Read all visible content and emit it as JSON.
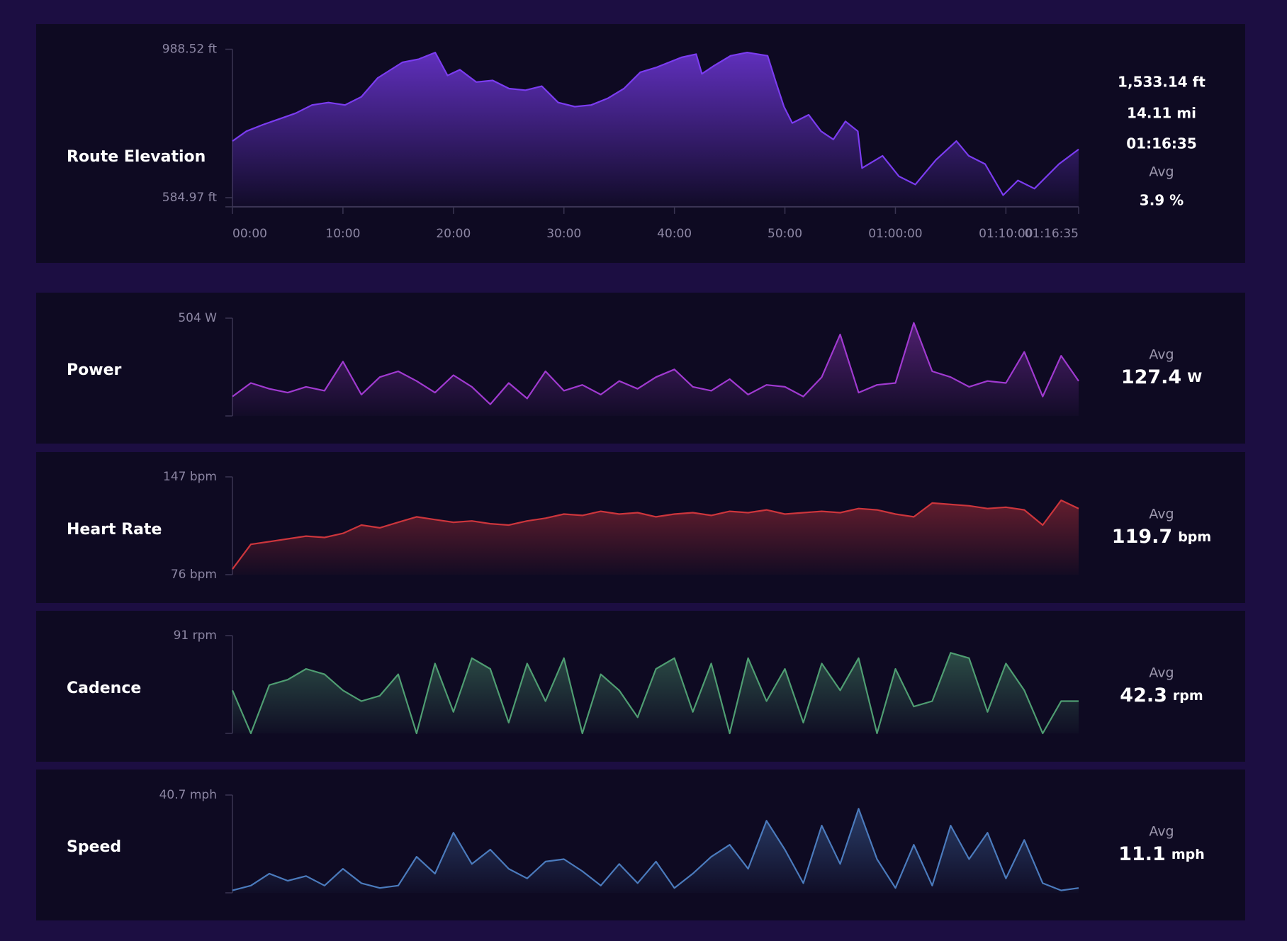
{
  "chart_data": [
    {
      "type": "area",
      "title": "Route Elevation",
      "color": "#7b3cf0",
      "x": [
        0,
        76,
        165,
        254,
        343,
        432,
        521,
        611,
        700,
        789,
        923,
        1012,
        1101,
        1168,
        1235,
        1324,
        1413,
        1502,
        1591,
        1680,
        1769,
        1859,
        1948,
        2037,
        2126,
        2215,
        2304,
        2438,
        2518,
        2549,
        2616,
        2705,
        2795,
        2906,
        2951,
        2995,
        3040,
        3129,
        3196,
        3263,
        3329,
        3396,
        3419,
        3530,
        3619,
        3708,
        3820,
        3931,
        3998,
        4087,
        4185,
        4265,
        4355,
        4488,
        4595
      ],
      "values": [
        738.8,
        765.6,
        783.4,
        799.0,
        814.6,
        836.9,
        843.6,
        836.9,
        859.2,
        910.5,
        952.9,
        961.8,
        979.6,
        917.2,
        932.8,
        899.4,
        903.8,
        881.5,
        877.1,
        888.2,
        843.6,
        832.5,
        836.9,
        854.8,
        881.5,
        926.1,
        939.5,
        966.3,
        975.2,
        921.7,
        944.0,
        970.7,
        979.6,
        970.7,
        899.4,
        832.5,
        787.9,
        810.2,
        765.6,
        743.3,
        792.4,
        765.6,
        665.3,
        698.7,
        643.0,
        620.7,
        687.6,
        738.8,
        698.7,
        676.4,
        591.7,
        631.8,
        609.5,
        676.4,
        716.5
      ],
      "xlim": [
        0,
        4595
      ],
      "xticks": [
        {
          "value": 0,
          "label": "00:00"
        },
        {
          "value": 600,
          "label": "10:00"
        },
        {
          "value": 1200,
          "label": "20:00"
        },
        {
          "value": 1800,
          "label": "30:00"
        },
        {
          "value": 2400,
          "label": "40:00"
        },
        {
          "value": 3000,
          "label": "50:00"
        },
        {
          "value": 3600,
          "label": "01:00:00"
        },
        {
          "value": 4200,
          "label": "01:10:00"
        },
        {
          "value": 4595,
          "label": "01:16:35"
        }
      ],
      "ylim": [
        560,
        988.52
      ],
      "yticks": [
        {
          "value": 988.52,
          "label": "988.52 ft"
        },
        {
          "value": 584.97,
          "label": "584.97 ft"
        }
      ],
      "stats": [
        "1,533.14 ft",
        "14.11 mi",
        "01:16:35",
        "Avg",
        "3.9 %"
      ]
    },
    {
      "type": "area",
      "title": "Power",
      "color": "#a03ad0",
      "x": [
        0,
        100,
        200,
        300,
        400,
        500,
        600,
        700,
        800,
        900,
        1000,
        1100,
        1200,
        1300,
        1400,
        1500,
        1600,
        1700,
        1800,
        1900,
        2000,
        2100,
        2200,
        2300,
        2400,
        2500,
        2600,
        2700,
        2800,
        2900,
        3000,
        3100,
        3200,
        3300,
        3400,
        3500,
        3600,
        3700,
        3800,
        3900,
        4000,
        4100,
        4200,
        4300,
        4400,
        4500,
        4595
      ],
      "values": [
        100,
        170,
        140,
        120,
        150,
        130,
        280,
        110,
        200,
        230,
        180,
        120,
        210,
        150,
        60,
        170,
        90,
        230,
        130,
        160,
        110,
        180,
        140,
        200,
        240,
        150,
        130,
        190,
        110,
        160,
        150,
        100,
        200,
        420,
        120,
        160,
        170,
        480,
        230,
        200,
        150,
        180,
        170,
        330,
        100,
        310,
        180
      ],
      "xlim": [
        0,
        4595
      ],
      "ylim": [
        0,
        504
      ],
      "yticks": [
        {
          "value": 504,
          "label": "504 W"
        }
      ],
      "avg_label": "Avg",
      "avg": 127.4,
      "unit": "W"
    },
    {
      "type": "area",
      "title": "Heart Rate",
      "color": "#cc353c",
      "x": [
        0,
        100,
        200,
        300,
        400,
        500,
        600,
        700,
        800,
        900,
        1000,
        1100,
        1200,
        1300,
        1400,
        1500,
        1600,
        1700,
        1800,
        1900,
        2000,
        2100,
        2200,
        2300,
        2400,
        2500,
        2600,
        2700,
        2800,
        2900,
        3000,
        3100,
        3200,
        3300,
        3400,
        3500,
        3600,
        3700,
        3800,
        3900,
        4000,
        4100,
        4200,
        4300,
        4400,
        4500,
        4595
      ],
      "values": [
        80,
        98,
        100,
        102,
        104,
        103,
        106,
        112,
        110,
        114,
        118,
        116,
        114,
        115,
        113,
        112,
        115,
        117,
        120,
        119,
        122,
        120,
        121,
        118,
        120,
        121,
        119,
        122,
        121,
        123,
        120,
        121,
        122,
        121,
        124,
        123,
        120,
        118,
        128,
        127,
        126,
        124,
        125,
        123,
        112,
        130,
        124
      ],
      "xlim": [
        0,
        4595
      ],
      "ylim": [
        76,
        147
      ],
      "yticks": [
        {
          "value": 147,
          "label": "147 bpm"
        },
        {
          "value": 76,
          "label": "76 bpm"
        }
      ],
      "avg_label": "Avg",
      "avg": 119.7,
      "unit": "bpm"
    },
    {
      "type": "area",
      "title": "Cadence",
      "color": "#4f9d72",
      "x": [
        0,
        100,
        200,
        300,
        400,
        500,
        600,
        700,
        800,
        900,
        1000,
        1100,
        1200,
        1300,
        1400,
        1500,
        1600,
        1700,
        1800,
        1900,
        2000,
        2100,
        2200,
        2300,
        2400,
        2500,
        2600,
        2700,
        2800,
        2900,
        3000,
        3100,
        3200,
        3300,
        3400,
        3500,
        3600,
        3700,
        3800,
        3900,
        4000,
        4100,
        4200,
        4300,
        4400,
        4500,
        4595
      ],
      "values": [
        40,
        0,
        45,
        50,
        60,
        55,
        40,
        30,
        35,
        55,
        0,
        65,
        20,
        70,
        60,
        10,
        65,
        30,
        70,
        0,
        55,
        40,
        15,
        60,
        70,
        20,
        65,
        0,
        70,
        30,
        60,
        10,
        65,
        40,
        70,
        0,
        60,
        25,
        30,
        75,
        70,
        20,
        65,
        40,
        0,
        30,
        30
      ],
      "xlim": [
        0,
        4595
      ],
      "ylim": [
        0,
        91
      ],
      "yticks": [
        {
          "value": 91,
          "label": "91 rpm"
        }
      ],
      "avg_label": "Avg",
      "avg": 42.3,
      "unit": "rpm"
    },
    {
      "type": "area",
      "title": "Speed",
      "color": "#4b7bbd",
      "x": [
        0,
        100,
        200,
        300,
        400,
        500,
        600,
        700,
        800,
        900,
        1000,
        1100,
        1200,
        1300,
        1400,
        1500,
        1600,
        1700,
        1800,
        1900,
        2000,
        2100,
        2200,
        2300,
        2400,
        2500,
        2600,
        2700,
        2800,
        2900,
        3000,
        3100,
        3200,
        3300,
        3400,
        3500,
        3600,
        3700,
        3800,
        3900,
        4000,
        4100,
        4200,
        4300,
        4400,
        4500,
        4595
      ],
      "values": [
        1,
        3,
        8,
        5,
        7,
        3,
        10,
        4,
        2,
        3,
        15,
        8,
        25,
        12,
        18,
        10,
        6,
        13,
        14,
        9,
        3,
        12,
        4,
        13,
        2,
        8,
        15,
        20,
        10,
        30,
        18,
        4,
        28,
        12,
        35,
        14,
        2,
        20,
        3,
        28,
        14,
        25,
        6,
        22,
        4,
        1,
        2
      ],
      "xlim": [
        0,
        4595
      ],
      "ylim": [
        0,
        40.7
      ],
      "yticks": [
        {
          "value": 40.7,
          "label": "40.7 mph"
        }
      ],
      "avg_label": "Avg",
      "avg": 11.1,
      "unit": "mph"
    }
  ]
}
